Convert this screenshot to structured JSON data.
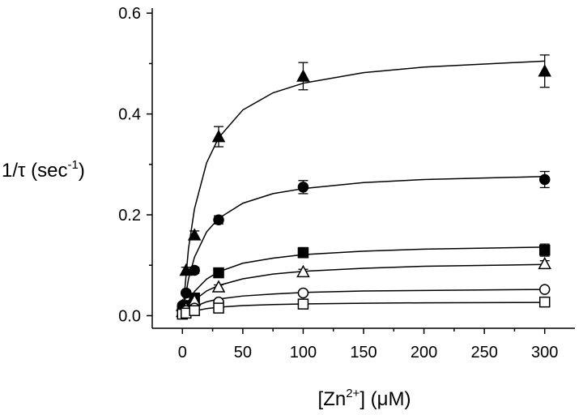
{
  "chart_data": {
    "type": "scatter",
    "xlabel": {
      "text": "[Zn",
      "sup": "2+",
      "after": "] (μM)"
    },
    "ylabel": {
      "text": "1/τ (sec",
      "sup": "-1",
      "after": ")"
    },
    "x": [
      0,
      3,
      10,
      30,
      100,
      300
    ],
    "xlim": [
      -25,
      325
    ],
    "ylim": [
      -0.025,
      0.61
    ],
    "xticks": [
      0,
      50,
      100,
      150,
      200,
      250,
      300
    ],
    "xminor": [
      25,
      75,
      125,
      175,
      225,
      275
    ],
    "yticks": [
      {
        "value": 0,
        "label": "0.0"
      },
      0.2,
      0.4,
      0.6
    ],
    "yminor": [
      0.1,
      0.3,
      0.5
    ],
    "fit_x": [
      0,
      5,
      10,
      20,
      30,
      50,
      75,
      100,
      150,
      200,
      300
    ],
    "color": "#000000",
    "series": [
      {
        "marker": "triangle",
        "filled": true,
        "values": [
          0.02,
          0.09,
          0.16,
          0.355,
          0.475,
          0.485
        ],
        "errors": [
          0.005,
          0.006,
          0.008,
          0.02,
          0.027,
          0.032
        ],
        "fit": [
          0,
          0.1325,
          0.212,
          0.303,
          0.353,
          0.408,
          0.442,
          0.461,
          0.482,
          0.493,
          0.505
        ]
      },
      {
        "marker": "circle",
        "filled": true,
        "values": [
          0.02,
          0.045,
          0.09,
          0.19,
          0.255,
          0.27
        ],
        "errors": [
          0.004,
          0.005,
          0.006,
          0.008,
          0.013,
          0.016
        ],
        "fit": [
          0,
          0.0725,
          0.116,
          0.166,
          0.193,
          0.223,
          0.242,
          0.252,
          0.264,
          0.27,
          0.276
        ]
      },
      {
        "marker": "square",
        "filled": true,
        "values": [
          0.01,
          0.02,
          0.035,
          0.085,
          0.125,
          0.13
        ],
        "errors": [
          0.003,
          0.004,
          0.005,
          0.006,
          0.01,
          0.012
        ],
        "fit": [
          0,
          0.029,
          0.048,
          0.0725,
          0.087,
          0.104,
          0.114,
          0.121,
          0.128,
          0.132,
          0.136
        ]
      },
      {
        "marker": "triangle",
        "filled": false,
        "values": [
          0.008,
          0.015,
          0.03,
          0.057,
          0.087,
          0.103
        ],
        "errors": [
          0.002,
          0.003,
          0.003,
          0.004,
          0.005,
          0.006
        ],
        "fit": [
          0,
          0.018,
          0.031,
          0.049,
          0.06,
          0.073,
          0.0825,
          0.088,
          0.094,
          0.098,
          0.1015
        ]
      },
      {
        "marker": "circle",
        "filled": false,
        "values": [
          0.005,
          0.01,
          0.015,
          0.027,
          0.045,
          0.052
        ],
        "errors": [
          0.002,
          0.002,
          0.002,
          0.003,
          0.003,
          0.003
        ],
        "fit": [
          0,
          0.011,
          0.018,
          0.0275,
          0.033,
          0.039,
          0.043,
          0.046,
          0.049,
          0.05,
          0.052
        ]
      },
      {
        "marker": "square",
        "filled": false,
        "values": [
          0.003,
          0.005,
          0.01,
          0.015,
          0.023,
          0.027
        ],
        "errors": [
          0.002,
          0.002,
          0.002,
          0.002,
          0.002,
          0.002
        ],
        "fit": [
          0,
          0.0056,
          0.0093,
          0.014,
          0.0168,
          0.02,
          0.022,
          0.0233,
          0.0247,
          0.0255,
          0.0263
        ]
      }
    ]
  }
}
